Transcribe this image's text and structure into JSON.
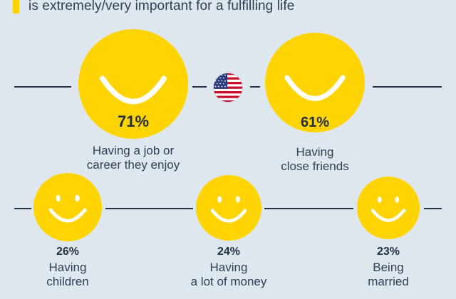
{
  "subtitle": "is extremely/very important for a fulfilling life",
  "colors": {
    "accent": "#ffd400",
    "text": "#1f2d3d",
    "line": "#24334a",
    "background": "#dfe7ee"
  },
  "flag_icon": "us-flag-icon",
  "chart_data": {
    "type": "pictogram",
    "items": [
      {
        "label_lines": [
          "Having a job or",
          "career they enjoy"
        ],
        "value": 71,
        "display": "71%"
      },
      {
        "label_lines": [
          "Having",
          "close friends"
        ],
        "value": 61,
        "display": "61%"
      },
      {
        "label_lines": [
          "Having",
          "children"
        ],
        "value": 26,
        "display": "26%"
      },
      {
        "label_lines": [
          "Having",
          "a lot of money"
        ],
        "value": 24,
        "display": "24%"
      },
      {
        "label_lines": [
          "Being",
          "married"
        ],
        "value": 23,
        "display": "23%"
      }
    ]
  }
}
